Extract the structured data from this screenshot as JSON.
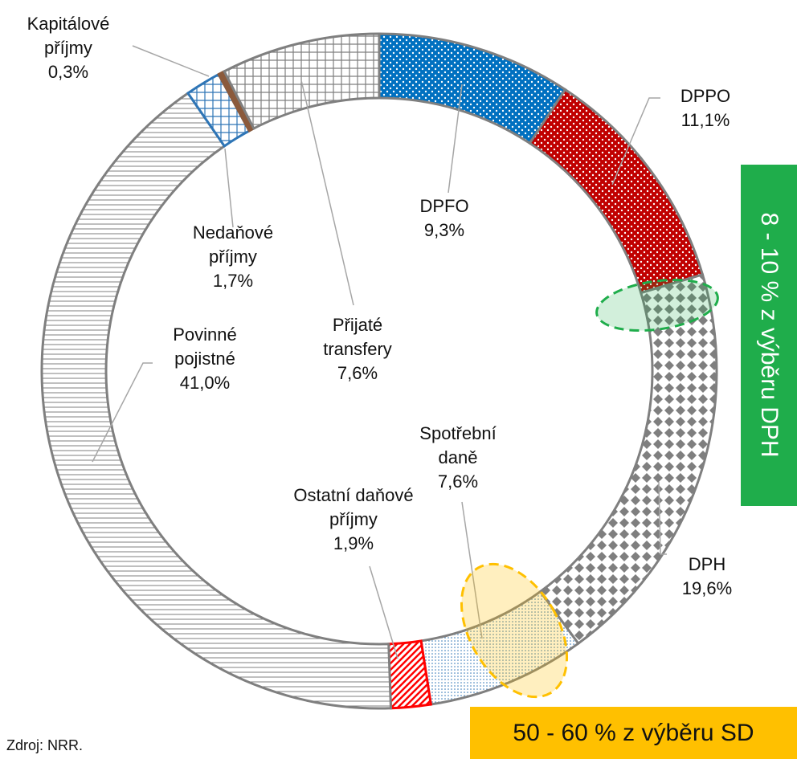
{
  "chart_data": {
    "type": "donut",
    "categories": [
      "DPFO",
      "DPPO",
      "DPH",
      "Spotřební daně",
      "Ostatní daňové příjmy",
      "Povinné pojistné",
      "Nedaňové příjmy",
      "Kapitálové příjmy",
      "Přijaté transfery"
    ],
    "values": [
      9.3,
      11.1,
      19.6,
      7.6,
      1.9,
      41.0,
      1.7,
      0.3,
      7.6
    ],
    "value_labels": [
      "9,3%",
      "11,1%",
      "19,6%",
      "7,6%",
      "1,9%",
      "41,0%",
      "1,7%",
      "0,3%",
      "7,6%"
    ],
    "colors": [
      "#0070c0",
      "#c00000",
      "#7f7f7f",
      "#2e75b6",
      "#ff0000",
      "#7f7f7f",
      "#2e75b6",
      "#8b5a3c",
      "#7f7f7f"
    ],
    "annotations": [
      "8 - 10 % z výběru DPH",
      "50 - 60 % z výběru SD"
    ],
    "source": "Zdroj: NRR."
  }
}
